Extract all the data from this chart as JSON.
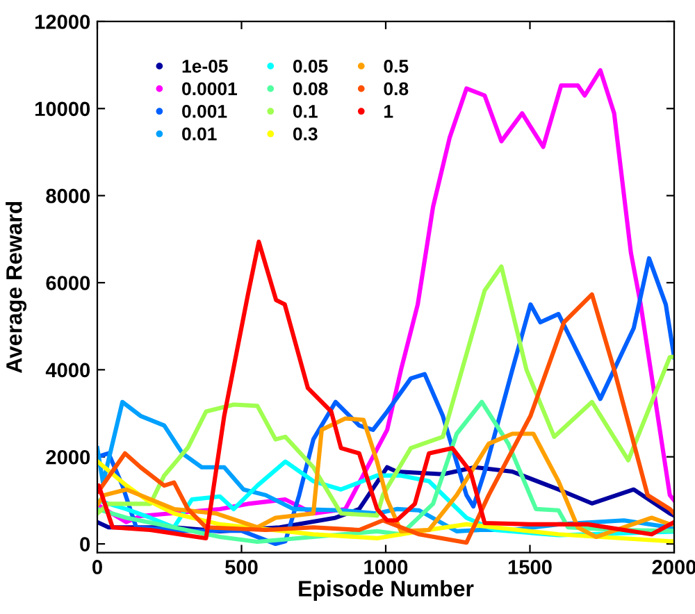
{
  "chart_data": {
    "type": "line",
    "xlabel": "Episode Number",
    "ylabel": "Average Reward",
    "xlim": [
      0,
      2000
    ],
    "ylim": [
      -200,
      12000
    ],
    "xticks": [
      0,
      500,
      1000,
      1500,
      2000
    ],
    "yticks": [
      0,
      2000,
      4000,
      6000,
      8000,
      10000,
      12000
    ],
    "grid": false,
    "legend": "top left",
    "line_style": "solid",
    "series": [
      {
        "name": "1e-05",
        "color": "#0000a0",
        "x": [
          0,
          39,
          266,
          425,
          633,
          826,
          908,
          1005,
          1038,
          1198,
          1309,
          1439,
          1599,
          1715,
          1860,
          1985,
          2000
        ],
        "values": [
          500,
          380,
          380,
          290,
          380,
          600,
          800,
          1760,
          1660,
          1600,
          1760,
          1660,
          1250,
          930,
          1250,
          700,
          650
        ]
      },
      {
        "name": "0.0001",
        "color": "#ff00ff",
        "x": [
          0,
          100,
          150,
          425,
          522,
          652,
          749,
          860,
          1005,
          1053,
          1111,
          1164,
          1222,
          1280,
          1343,
          1401,
          1473,
          1546,
          1608,
          1666,
          1690,
          1744,
          1792,
          1850,
          1884,
          1985,
          2000
        ],
        "values": [
          900,
          500,
          640,
          800,
          920,
          1020,
          700,
          800,
          2620,
          4000,
          5500,
          7740,
          9340,
          10460,
          10300,
          9250,
          9890,
          9120,
          10530,
          10530,
          10300,
          10880,
          9890,
          6690,
          5500,
          1120,
          1000
        ]
      },
      {
        "name": "0.001",
        "color": "#0060ff",
        "x": [
          0,
          39,
          87,
          135,
          300,
          500,
          618,
          652,
          700,
          749,
          826,
          908,
          956,
          1005,
          1087,
          1135,
          1198,
          1280,
          1304,
          1343,
          1439,
          1502,
          1536,
          1599,
          1647,
          1744,
          1860,
          1913,
          1971,
          2000
        ],
        "values": [
          2000,
          2080,
          1340,
          380,
          300,
          300,
          0,
          60,
          1120,
          2400,
          3260,
          2720,
          2620,
          3040,
          3800,
          3900,
          2940,
          1120,
          860,
          1660,
          4000,
          5500,
          5090,
          5280,
          4640,
          3330,
          4960,
          6560,
          5500,
          4290
        ]
      },
      {
        "name": "0.01",
        "color": "#00a0ff",
        "x": [
          0,
          20,
          87,
          150,
          232,
          295,
          362,
          440,
          507,
          584,
          681,
          845,
          970,
          1038,
          1116,
          1246,
          1328,
          1439,
          1599,
          1826,
          1985,
          2000
        ],
        "values": [
          2200,
          1400,
          3260,
          2940,
          2720,
          2080,
          1760,
          1760,
          1250,
          1120,
          800,
          770,
          700,
          800,
          770,
          290,
          320,
          320,
          450,
          540,
          380,
          380
        ]
      },
      {
        "name": "0.05",
        "color": "#00ffff",
        "x": [
          0,
          100,
          184,
          266,
          328,
          425,
          473,
          555,
          652,
          749,
          845,
          970,
          1053,
          1150,
          1280,
          1377,
          1600,
          2000
        ],
        "values": [
          1000,
          800,
          600,
          380,
          1020,
          1090,
          800,
          1340,
          1890,
          1440,
          1250,
          1570,
          1570,
          1440,
          600,
          320,
          200,
          280
        ]
      },
      {
        "name": "0.08",
        "color": "#50ffa0",
        "x": [
          0,
          101,
          266,
          425,
          555,
          749,
          970,
          1053,
          1164,
          1246,
          1333,
          1425,
          1521,
          1599,
          1632,
          1800,
          2000
        ],
        "values": [
          800,
          600,
          380,
          160,
          50,
          160,
          290,
          220,
          920,
          2530,
          3260,
          2300,
          800,
          770,
          380,
          320,
          300
        ]
      },
      {
        "name": "0.1",
        "color": "#a0ff50",
        "x": [
          0,
          39,
          184,
          232,
          314,
          377,
          473,
          555,
          618,
          652,
          749,
          845,
          970,
          990,
          1087,
          1198,
          1343,
          1401,
          1488,
          1584,
          1715,
          1841,
          1985,
          2000
        ],
        "values": [
          700,
          920,
          920,
          1570,
          2210,
          3040,
          3200,
          3170,
          2400,
          2460,
          1760,
          700,
          650,
          1120,
          2200,
          2460,
          5820,
          6370,
          4000,
          2460,
          3260,
          1920,
          4290,
          4300
        ]
      },
      {
        "name": "0.3",
        "color": "#ffff00",
        "x": [
          0,
          101,
          169,
          266,
          425,
          749,
          970,
          1116,
          1280,
          1599,
          1985,
          2000
        ],
        "values": [
          1900,
          1340,
          1020,
          700,
          450,
          220,
          130,
          290,
          450,
          220,
          60,
          60
        ]
      },
      {
        "name": "0.5",
        "color": "#ffa000",
        "x": [
          0,
          24,
          101,
          266,
          411,
          555,
          618,
          749,
          778,
          860,
          923,
          970,
          1005,
          1053,
          1150,
          1246,
          1357,
          1439,
          1512,
          1599,
          1666,
          1729,
          1922,
          1985,
          2000
        ],
        "values": [
          900,
          1120,
          1250,
          800,
          700,
          380,
          600,
          700,
          2620,
          2880,
          2850,
          1890,
          1020,
          290,
          320,
          1120,
          2300,
          2530,
          2530,
          1440,
          380,
          160,
          600,
          450,
          450
        ]
      },
      {
        "name": "0.8",
        "color": "#ff5000",
        "x": [
          0,
          14,
          96,
          150,
          232,
          266,
          314,
          377,
          584,
          749,
          908,
          990,
          1116,
          1280,
          1357,
          1502,
          1618,
          1715,
          1792,
          1908,
          1985,
          2000
        ],
        "values": [
          1200,
          1300,
          2080,
          1760,
          1340,
          1410,
          800,
          380,
          320,
          380,
          320,
          540,
          220,
          30,
          1120,
          2940,
          5090,
          5730,
          4000,
          1120,
          800,
          700
        ]
      },
      {
        "name": "1",
        "color": "#ff0000",
        "x": [
          0,
          5,
          53,
          184,
          377,
          440,
          522,
          560,
          620,
          650,
          730,
          811,
          845,
          908,
          970,
          1005,
          1038,
          1101,
          1150,
          1231,
          1294,
          1343,
          1500,
          1700,
          1922,
          2000
        ],
        "values": [
          1200,
          1340,
          380,
          320,
          130,
          2940,
          5720,
          6940,
          5600,
          5500,
          3580,
          3040,
          2200,
          2080,
          800,
          540,
          540,
          920,
          2080,
          2200,
          1660,
          480,
          450,
          450,
          220,
          500
        ]
      }
    ]
  }
}
